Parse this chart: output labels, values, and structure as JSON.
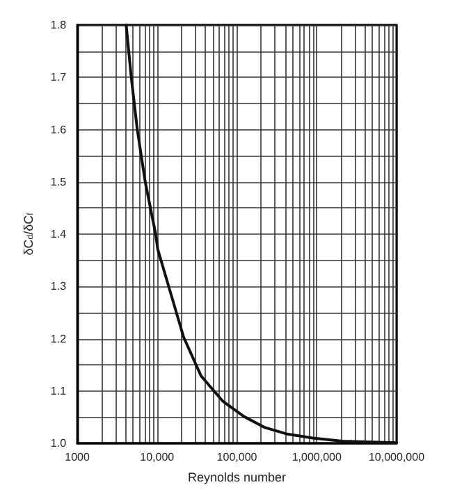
{
  "chart_data": {
    "type": "line",
    "xlabel": "Reynolds number",
    "ylabel": "δC$_{d}$/δC$_{f}$",
    "log": "x",
    "grid": true,
    "marker": "none",
    "line_style": "solid",
    "xlim": [
      1000,
      10000000
    ],
    "ylim": [
      1.0,
      1.8
    ],
    "xticks": [
      {
        "value": 1000,
        "label": "1000"
      },
      {
        "value": 2000,
        "label": null
      },
      {
        "value": 3000,
        "label": null
      },
      {
        "value": 4000,
        "label": null
      },
      {
        "value": 5000,
        "label": null
      },
      {
        "value": 6000,
        "label": null
      },
      {
        "value": 7000,
        "label": null
      },
      {
        "value": 8000,
        "label": null
      },
      {
        "value": 9000,
        "label": null
      },
      {
        "value": 10000,
        "label": "10,000"
      },
      {
        "value": 20000,
        "label": null
      },
      {
        "value": 30000,
        "label": null
      },
      {
        "value": 40000,
        "label": null
      },
      {
        "value": 50000,
        "label": null
      },
      {
        "value": 60000,
        "label": null
      },
      {
        "value": 70000,
        "label": null
      },
      {
        "value": 80000,
        "label": null
      },
      {
        "value": 90000,
        "label": null
      },
      {
        "value": 100000,
        "label": "100,000"
      },
      {
        "value": 200000,
        "label": null
      },
      {
        "value": 300000,
        "label": null
      },
      {
        "value": 400000,
        "label": null
      },
      {
        "value": 500000,
        "label": null
      },
      {
        "value": 600000,
        "label": null
      },
      {
        "value": 700000,
        "label": null
      },
      {
        "value": 800000,
        "label": null
      },
      {
        "value": 900000,
        "label": null
      },
      {
        "value": 1000000,
        "label": "1,000,000"
      },
      {
        "value": 2000000,
        "label": null
      },
      {
        "value": 3000000,
        "label": null
      },
      {
        "value": 4000000,
        "label": null
      },
      {
        "value": 5000000,
        "label": null
      },
      {
        "value": 6000000,
        "label": null
      },
      {
        "value": 7000000,
        "label": null
      },
      {
        "value": 8000000,
        "label": null
      },
      {
        "value": 9000000,
        "label": null
      },
      {
        "value": 10000000,
        "label": "10,000,000"
      }
    ],
    "yticks": [
      {
        "value": 1.0,
        "label": "1.0"
      },
      {
        "value": 1.05,
        "label": null
      },
      {
        "value": 1.1,
        "label": "1.1"
      },
      {
        "value": 1.15,
        "label": null
      },
      {
        "value": 1.2,
        "label": "1.2"
      },
      {
        "value": 1.25,
        "label": null
      },
      {
        "value": 1.3,
        "label": "1.3"
      },
      {
        "value": 1.35,
        "label": null
      },
      {
        "value": 1.4,
        "label": "1.4"
      },
      {
        "value": 1.45,
        "label": null
      },
      {
        "value": 1.5,
        "label": "1.5"
      },
      {
        "value": 1.55,
        "label": null
      },
      {
        "value": 1.6,
        "label": "1.6"
      },
      {
        "value": 1.65,
        "label": null
      },
      {
        "value": 1.7,
        "label": "1.7"
      },
      {
        "value": 1.75,
        "label": null
      },
      {
        "value": 1.8,
        "label": "1.8"
      }
    ],
    "series": [
      {
        "color": "#111111",
        "x": [
          4100,
          4750,
          5650,
          7100,
          9600,
          10200,
          21500,
          35500,
          66000,
          123000,
          225000,
          415000,
          890000,
          2100000,
          10000000
        ],
        "values": [
          1.8,
          1.7,
          1.6,
          1.5,
          1.4,
          1.371,
          1.203,
          1.129,
          1.081,
          1.051,
          1.03,
          1.018,
          1.01,
          1.004,
          1.001
        ]
      }
    ]
  }
}
